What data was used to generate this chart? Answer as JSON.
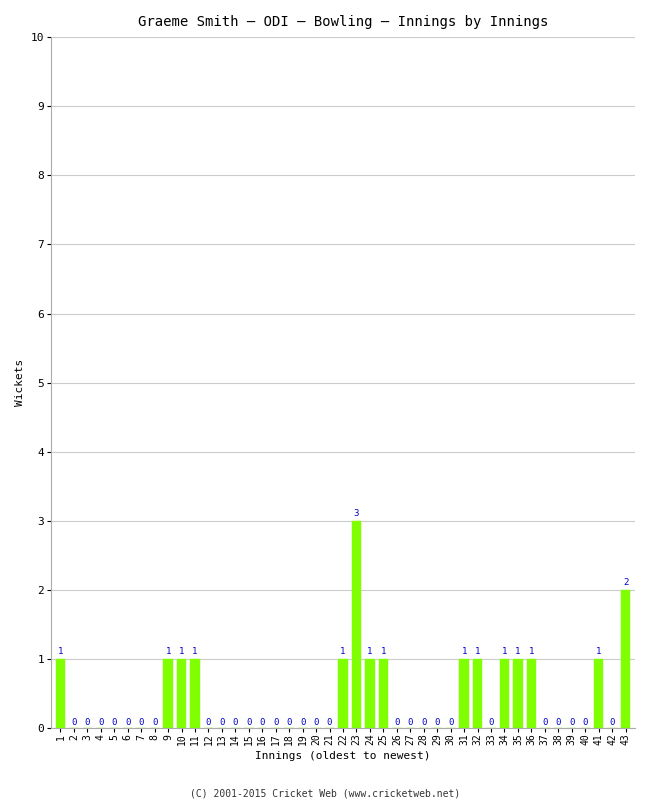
{
  "title": "Graeme Smith – ODI – Bowling – Innings by Innings",
  "xlabel": "Innings (oldest to newest)",
  "ylabel": "Wickets",
  "ylim": [
    0,
    10
  ],
  "yticks": [
    0,
    1,
    2,
    3,
    4,
    5,
    6,
    7,
    8,
    9,
    10
  ],
  "innings": [
    1,
    2,
    3,
    4,
    5,
    6,
    7,
    8,
    9,
    10,
    11,
    12,
    13,
    14,
    15,
    16,
    17,
    18,
    19,
    20,
    21,
    22,
    23,
    24,
    25,
    26,
    27,
    28,
    29,
    30,
    31,
    32,
    33,
    34,
    35,
    36,
    37,
    38,
    39,
    40,
    41,
    42,
    43
  ],
  "wickets": [
    1,
    0,
    0,
    0,
    0,
    0,
    0,
    0,
    1,
    1,
    1,
    0,
    0,
    0,
    0,
    0,
    0,
    0,
    0,
    0,
    0,
    1,
    3,
    1,
    1,
    0,
    0,
    0,
    0,
    0,
    1,
    1,
    0,
    1,
    1,
    1,
    0,
    0,
    0,
    0,
    1,
    0,
    2
  ],
  "bar_color": "#7fff00",
  "bar_edge_color": "#7fff00",
  "label_color": "#0000cc",
  "background_color": "#ffffff",
  "grid_color": "#cccccc",
  "footer": "(C) 2001-2015 Cricket Web (www.cricketweb.net)",
  "title_fontsize": 10,
  "axis_label_fontsize": 8,
  "tick_fontsize": 7,
  "bar_label_fontsize": 6.5
}
